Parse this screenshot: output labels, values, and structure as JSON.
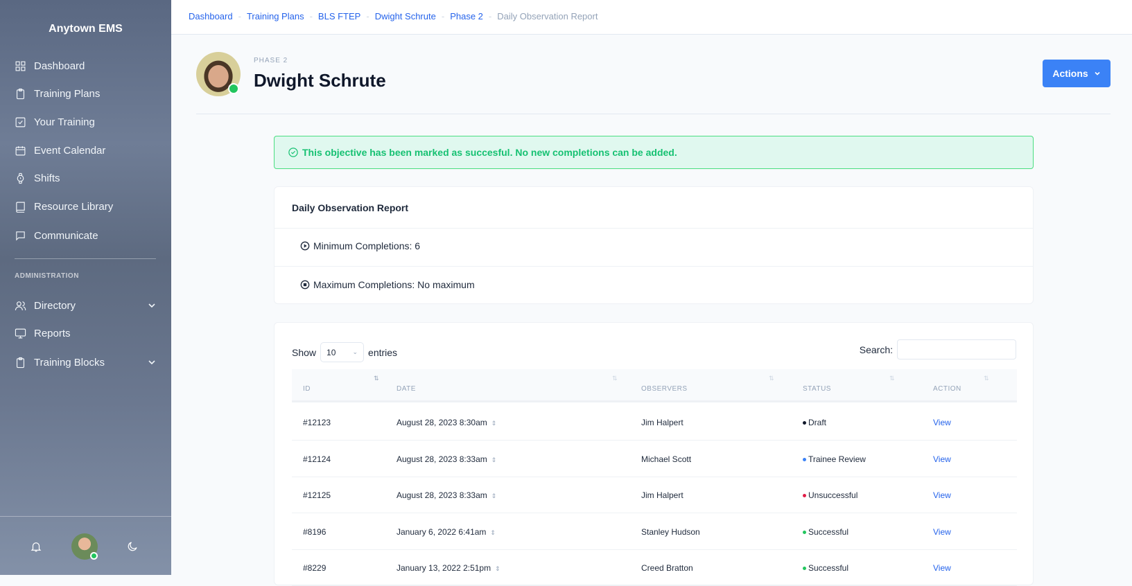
{
  "sidebar": {
    "title": "Anytown EMS",
    "items": [
      {
        "label": "Dashboard",
        "icon": "grid-icon"
      },
      {
        "label": "Training Plans",
        "icon": "clipboard-icon"
      },
      {
        "label": "Your Training",
        "icon": "check-square-icon"
      },
      {
        "label": "Event Calendar",
        "icon": "calendar-icon"
      },
      {
        "label": "Shifts",
        "icon": "watch-icon"
      },
      {
        "label": "Resource Library",
        "icon": "book-icon"
      },
      {
        "label": "Communicate",
        "icon": "message-icon"
      }
    ],
    "section": "ADMINISTRATION",
    "admin_items": [
      {
        "label": "Directory",
        "icon": "users-icon"
      },
      {
        "label": "Reports",
        "icon": "monitor-icon"
      },
      {
        "label": "Training Blocks",
        "icon": "clipboard-icon"
      }
    ]
  },
  "breadcrumb": [
    "Dashboard",
    "Training Plans",
    "BLS FTEP",
    "Dwight Schrute",
    "Phase 2"
  ],
  "breadcrumb_current": "Daily Observation Report",
  "breadcrumb_sep": "-",
  "profile": {
    "phase": "PHASE 2",
    "name": "Dwight Schrute",
    "status_color": "#22c55e"
  },
  "actions_label": "Actions",
  "alert": "This objective has been marked as succesful. No new completions can be added.",
  "objective": {
    "title": "Daily Observation Report",
    "min": "Minimum Completions: 6",
    "max": "Maximum Completions: No maximum"
  },
  "table": {
    "show": "Show",
    "entries": "entries",
    "page_size": "10",
    "search_label": "Search:",
    "search_value": "",
    "columns": [
      "ID",
      "DATE",
      "OBSERVERS",
      "STATUS",
      "ACTION"
    ],
    "rows": [
      {
        "id": "#12123",
        "date": "August 28, 2023 8:30am",
        "observer": "Jim Halpert",
        "status": "Draft",
        "status_color": "#0f172a",
        "action": "View"
      },
      {
        "id": "#12124",
        "date": "August 28, 2023 8:33am",
        "observer": "Michael Scott",
        "status": "Trainee Review",
        "status_color": "#3b82f6",
        "action": "View"
      },
      {
        "id": "#12125",
        "date": "August 28, 2023 8:33am",
        "observer": "Jim Halpert",
        "status": "Unsuccessful",
        "status_color": "#e11d48",
        "action": "View"
      },
      {
        "id": "#8196",
        "date": "January 6, 2022 6:41am",
        "observer": "Stanley Hudson",
        "status": "Successful",
        "status_color": "#22c55e",
        "action": "View"
      },
      {
        "id": "#8229",
        "date": "January 13, 2022 2:51pm",
        "observer": "Creed Bratton",
        "status": "Successful",
        "status_color": "#22c55e",
        "action": "View"
      }
    ]
  },
  "colors": {
    "accent": "#3b82f6",
    "success": "#16c172"
  }
}
